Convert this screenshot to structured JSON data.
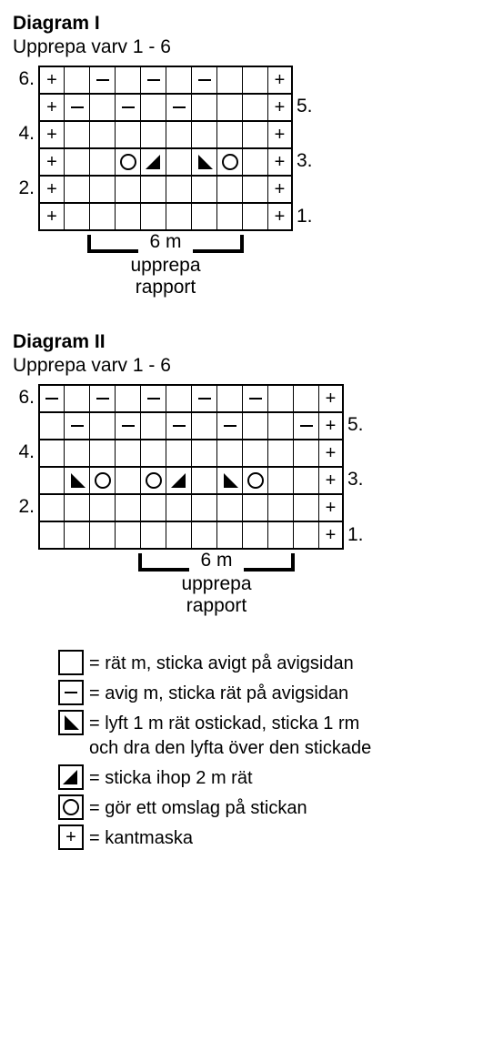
{
  "diagrams": [
    {
      "title": "Diagram I",
      "subtitle": "Upprepa varv 1 - 6",
      "cols": 10,
      "repeat_start_col": 2,
      "repeat_end_col": 7,
      "repeat_label": "6 m",
      "repeat_text1": "upprepa",
      "repeat_text2": "rapport",
      "cell_size": 28,
      "left_label_width": 28,
      "rows": [
        {
          "n": 6,
          "side": "left",
          "cells": [
            "plus",
            "",
            "minus",
            "",
            "minus",
            "",
            "minus",
            "",
            "",
            "plus"
          ]
        },
        {
          "n": 5,
          "side": "right",
          "cells": [
            "plus",
            "minus",
            "",
            "minus",
            "",
            "minus",
            "",
            "",
            "",
            "plus"
          ]
        },
        {
          "n": 4,
          "side": "left",
          "cells": [
            "plus",
            "",
            "",
            "",
            "",
            "",
            "",
            "",
            "",
            "plus"
          ]
        },
        {
          "n": 3,
          "side": "right",
          "cells": [
            "plus",
            "",
            "",
            "circle",
            "triL",
            "",
            "triR",
            "circle",
            "",
            "plus"
          ]
        },
        {
          "n": 2,
          "side": "left",
          "cells": [
            "plus",
            "",
            "",
            "",
            "",
            "",
            "",
            "",
            "",
            "plus"
          ]
        },
        {
          "n": 1,
          "side": "right",
          "cells": [
            "plus",
            "",
            "",
            "",
            "",
            "",
            "",
            "",
            "",
            "plus"
          ]
        }
      ]
    },
    {
      "title": "Diagram II",
      "subtitle": "Upprepa varv 1 - 6",
      "cols": 12,
      "repeat_start_col": 4,
      "repeat_end_col": 9,
      "repeat_label": "6 m",
      "repeat_text1": "upprepa",
      "repeat_text2": "rapport",
      "cell_size": 28,
      "left_label_width": 28,
      "rows": [
        {
          "n": 6,
          "side": "left",
          "cells": [
            "minus",
            "",
            "minus",
            "",
            "minus",
            "",
            "minus",
            "",
            "minus",
            "",
            "",
            "plus"
          ]
        },
        {
          "n": 5,
          "side": "right",
          "cells": [
            "",
            "minus",
            "",
            "minus",
            "",
            "minus",
            "",
            "minus",
            "",
            "",
            "minus",
            "plus"
          ]
        },
        {
          "n": 4,
          "side": "left",
          "cells": [
            "",
            "",
            "",
            "",
            "",
            "",
            "",
            "",
            "",
            "",
            "",
            "plus"
          ]
        },
        {
          "n": 3,
          "side": "right",
          "cells": [
            "",
            "triR",
            "circle",
            "",
            "circle",
            "triL",
            "",
            "triR",
            "circle",
            "",
            "",
            "plus"
          ]
        },
        {
          "n": 2,
          "side": "left",
          "cells": [
            "",
            "",
            "",
            "",
            "",
            "",
            "",
            "",
            "",
            "",
            "",
            "plus"
          ]
        },
        {
          "n": 1,
          "side": "right",
          "cells": [
            "",
            "",
            "",
            "",
            "",
            "",
            "",
            "",
            "",
            "",
            "",
            "plus"
          ]
        }
      ]
    }
  ],
  "legend": [
    {
      "sym": "",
      "text": "= rät m, sticka avigt på avigsidan"
    },
    {
      "sym": "minus",
      "text": "= avig m, sticka rät på avigsidan"
    },
    {
      "sym": "triR",
      "text": "= lyft 1 m rät ostickad, sticka 1 rm",
      "text2": "och dra den lyfta över den stickade"
    },
    {
      "sym": "triL",
      "text": "= sticka ihop 2 m rät"
    },
    {
      "sym": "circle",
      "text": "= gör ett omslag på stickan"
    },
    {
      "sym": "plus",
      "text": "= kantmaska"
    }
  ],
  "colors": {
    "line": "#000000",
    "bg": "#ffffff"
  }
}
